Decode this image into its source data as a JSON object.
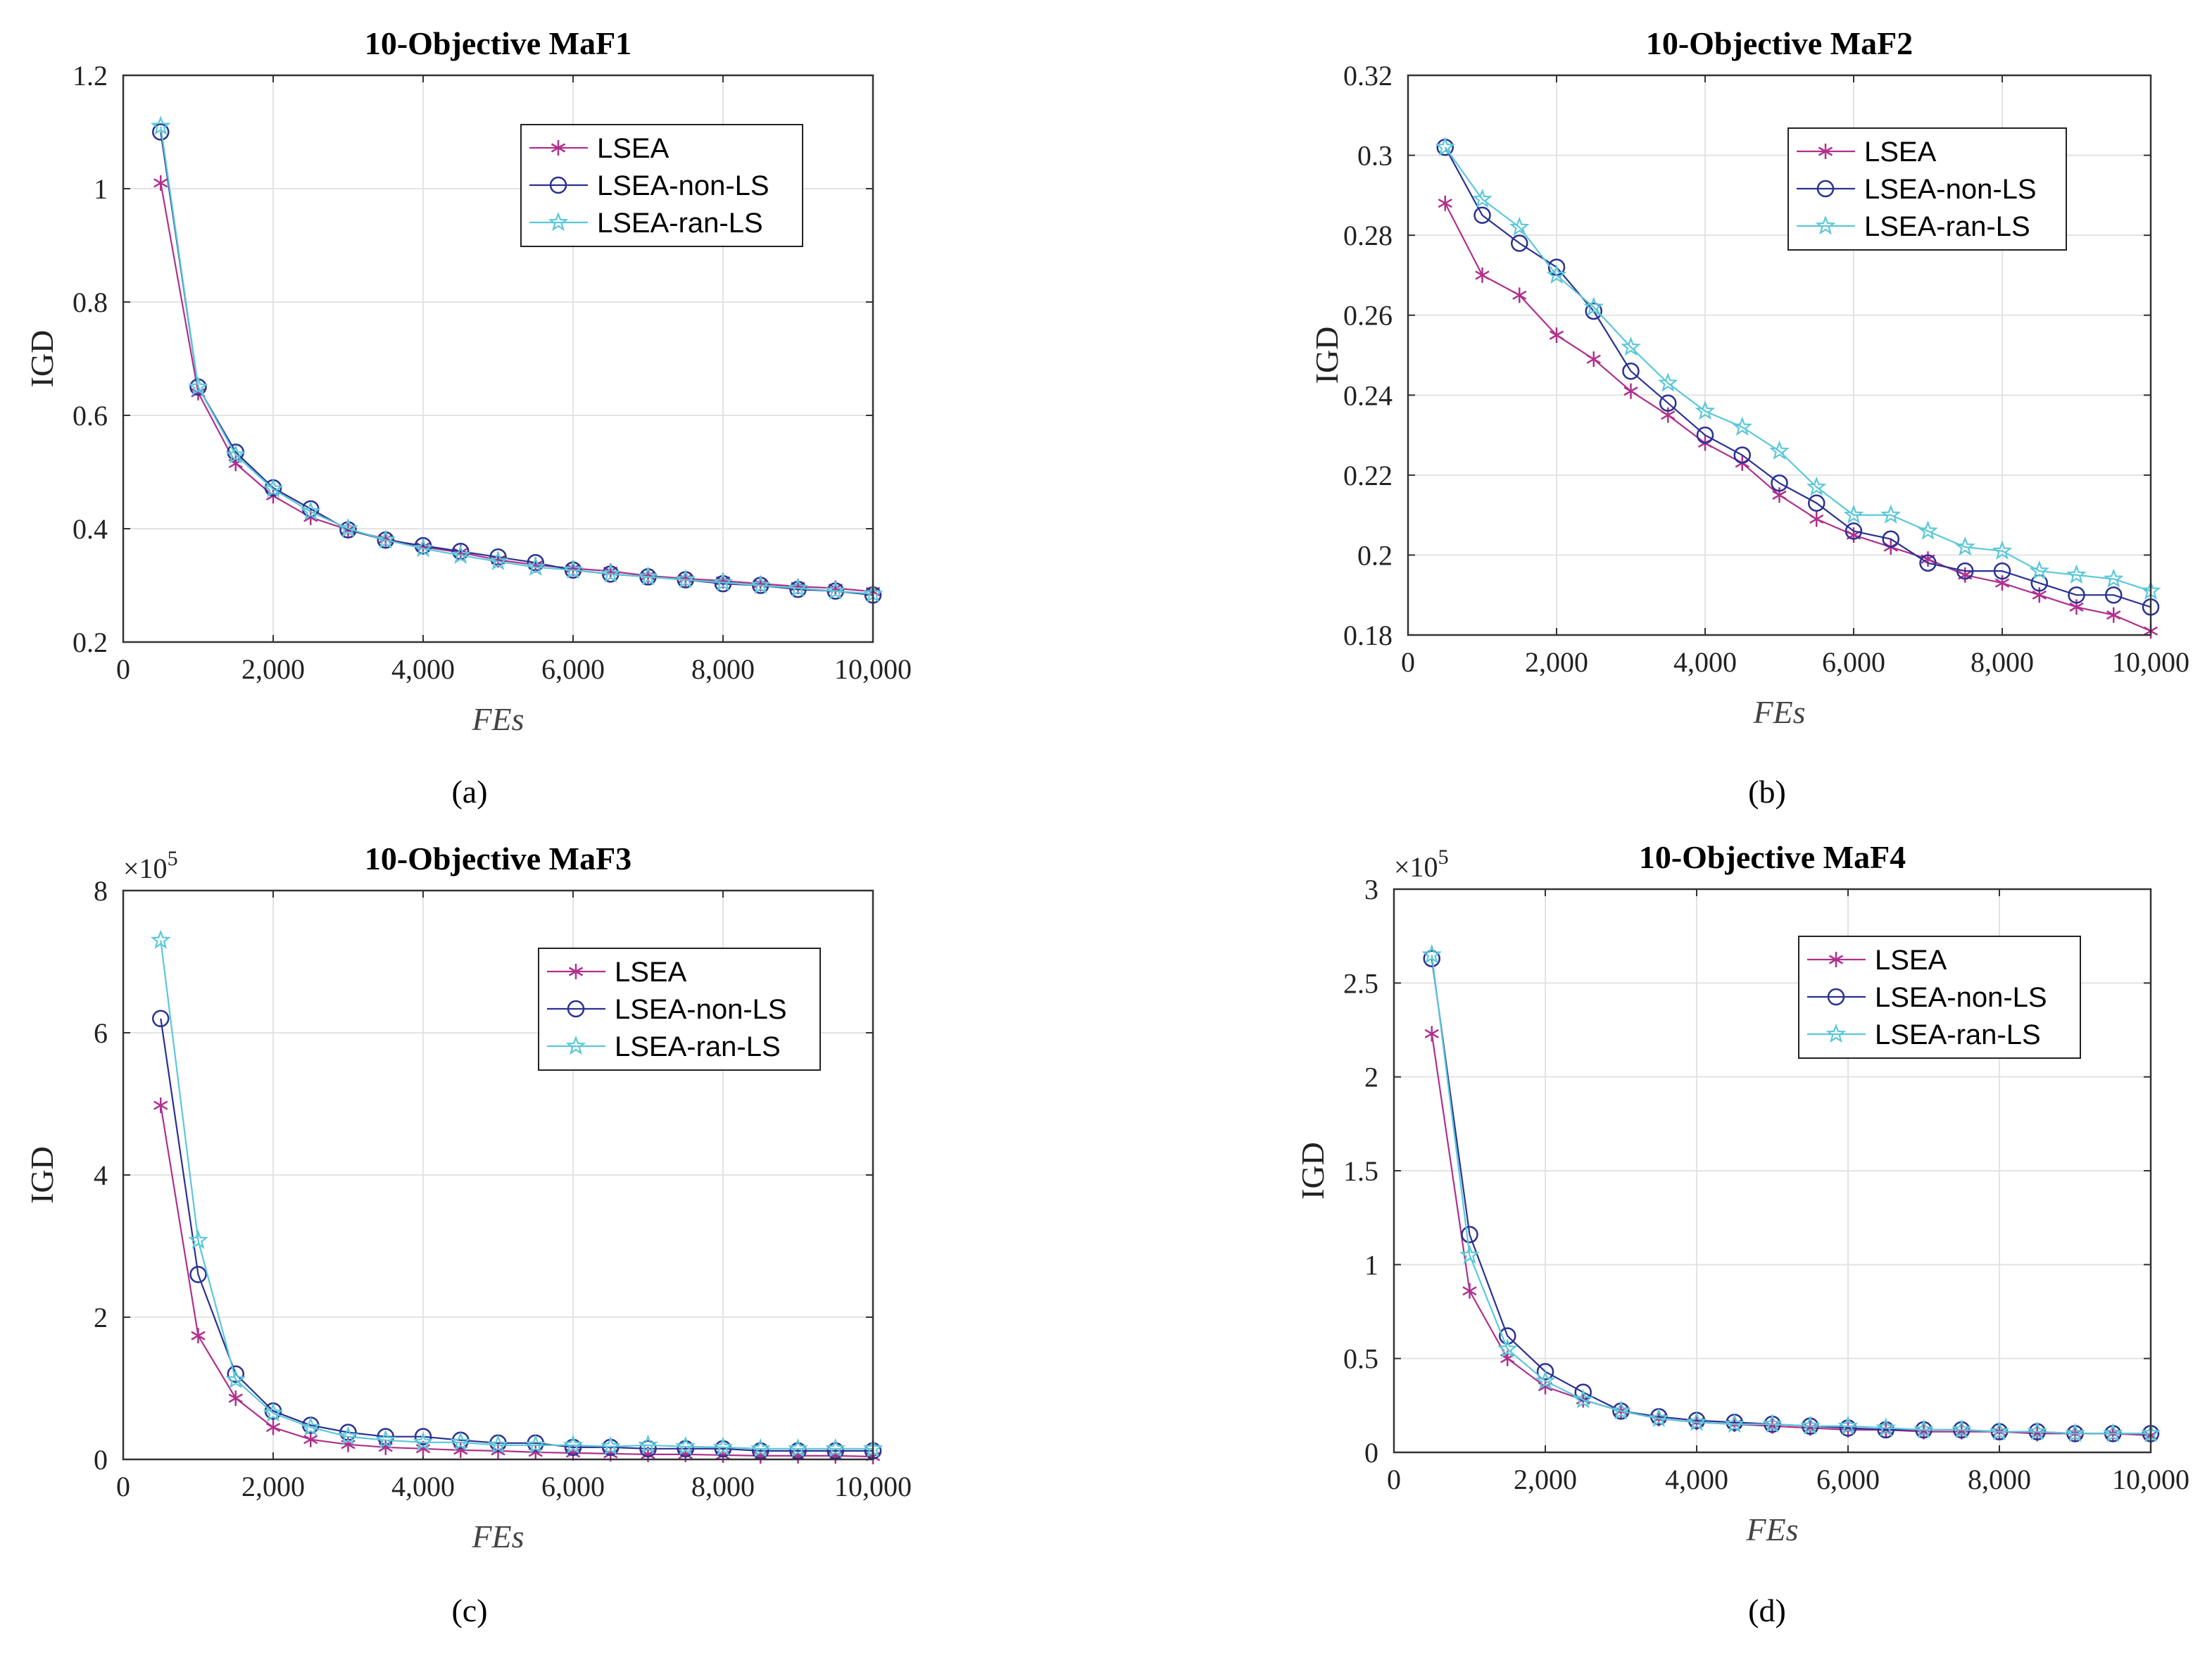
{
  "chart_data": [
    {
      "id": "a",
      "type": "line",
      "title": "10-Objective MaF1",
      "caption": "(a)",
      "xlabel": "FEs",
      "ylabel": "IGD",
      "xlim": [
        0,
        10000
      ],
      "ylim": [
        0.2,
        1.2
      ],
      "xticks": [
        0,
        2000,
        4000,
        6000,
        8000,
        10000
      ],
      "xtick_labels": [
        "0",
        "2,000",
        "4,000",
        "6,000",
        "8,000",
        "10,000"
      ],
      "yticks": [
        0.2,
        0.4,
        0.6,
        0.8,
        1,
        1.2
      ],
      "ytick_labels": [
        "0.2",
        "0.4",
        "0.6",
        "0.8",
        "1",
        "1.2"
      ],
      "exponent_label": "",
      "legend_position": "top-right",
      "x": [
        500,
        1000,
        1500,
        2000,
        2500,
        3000,
        3500,
        4000,
        4500,
        5000,
        5500,
        6000,
        6500,
        7000,
        7500,
        8000,
        8500,
        9000,
        9500,
        10000
      ],
      "series": [
        {
          "name": "LSEA",
          "color": "#b0308c",
          "marker": "asterisk",
          "values": [
            1.01,
            0.64,
            0.515,
            0.458,
            0.42,
            0.398,
            0.382,
            0.368,
            0.358,
            0.345,
            0.336,
            0.33,
            0.325,
            0.317,
            0.312,
            0.308,
            0.303,
            0.298,
            0.295,
            0.289
          ]
        },
        {
          "name": "LSEA-non-LS",
          "color": "#2a3192",
          "marker": "circle",
          "values": [
            1.1,
            0.65,
            0.535,
            0.472,
            0.435,
            0.398,
            0.38,
            0.37,
            0.36,
            0.35,
            0.34,
            0.327,
            0.32,
            0.315,
            0.31,
            0.303,
            0.3,
            0.293,
            0.29,
            0.283
          ]
        },
        {
          "name": "LSEA-ran-LS",
          "color": "#5bc8d8",
          "marker": "star",
          "values": [
            1.11,
            0.65,
            0.53,
            0.47,
            0.43,
            0.4,
            0.38,
            0.365,
            0.353,
            0.342,
            0.332,
            0.327,
            0.32,
            0.315,
            0.31,
            0.305,
            0.3,
            0.295,
            0.29,
            0.285
          ]
        }
      ]
    },
    {
      "id": "b",
      "type": "line",
      "title": "10-Objective MaF2",
      "caption": "(b)",
      "xlabel": "FEs",
      "ylabel": "IGD",
      "xlim": [
        0,
        10000
      ],
      "ylim": [
        0.18,
        0.32
      ],
      "xticks": [
        0,
        2000,
        4000,
        6000,
        8000,
        10000
      ],
      "xtick_labels": [
        "0",
        "2,000",
        "4,000",
        "6,000",
        "8,000",
        "10,000"
      ],
      "yticks": [
        0.18,
        0.2,
        0.22,
        0.24,
        0.26,
        0.28,
        0.3,
        0.32
      ],
      "ytick_labels": [
        "0.18",
        "0.2",
        "0.22",
        "0.24",
        "0.26",
        "0.28",
        "0.3",
        "0.32"
      ],
      "exponent_label": "",
      "legend_position": "top-right",
      "x": [
        500,
        1000,
        1500,
        2000,
        2500,
        3000,
        3500,
        4000,
        4500,
        5000,
        5500,
        6000,
        6500,
        7000,
        7500,
        8000,
        8500,
        9000,
        9500,
        10000
      ],
      "series": [
        {
          "name": "LSEA",
          "color": "#b0308c",
          "marker": "asterisk",
          "values": [
            0.288,
            0.27,
            0.265,
            0.255,
            0.249,
            0.241,
            0.235,
            0.228,
            0.223,
            0.215,
            0.209,
            0.205,
            0.202,
            0.199,
            0.195,
            0.193,
            0.19,
            0.187,
            0.185,
            0.181
          ]
        },
        {
          "name": "LSEA-non-LS",
          "color": "#2a3192",
          "marker": "circle",
          "values": [
            0.302,
            0.285,
            0.278,
            0.272,
            0.261,
            0.246,
            0.238,
            0.23,
            0.225,
            0.218,
            0.213,
            0.206,
            0.204,
            0.198,
            0.196,
            0.196,
            0.193,
            0.19,
            0.19,
            0.187
          ]
        },
        {
          "name": "LSEA-ran-LS",
          "color": "#5bc8d8",
          "marker": "star",
          "values": [
            0.302,
            0.289,
            0.282,
            0.27,
            0.262,
            0.252,
            0.243,
            0.236,
            0.232,
            0.226,
            0.217,
            0.21,
            0.21,
            0.206,
            0.202,
            0.201,
            0.196,
            0.195,
            0.194,
            0.191
          ]
        }
      ]
    },
    {
      "id": "c",
      "type": "line",
      "title": "10-Objective MaF3",
      "caption": "(c)",
      "xlabel": "FEs",
      "ylabel": "IGD",
      "xlim": [
        0,
        10000
      ],
      "ylim": [
        0,
        8
      ],
      "xticks": [
        0,
        2000,
        4000,
        6000,
        8000,
        10000
      ],
      "xtick_labels": [
        "0",
        "2,000",
        "4,000",
        "6,000",
        "8,000",
        "10,000"
      ],
      "yticks": [
        0,
        2,
        4,
        6,
        8
      ],
      "ytick_labels": [
        "0",
        "2",
        "4",
        "6",
        "8"
      ],
      "exponent_label": "×10",
      "exponent_power": "5",
      "legend_position": "top-right",
      "x": [
        500,
        1000,
        1500,
        2000,
        2500,
        3000,
        3500,
        4000,
        4500,
        5000,
        5500,
        6000,
        6500,
        7000,
        7500,
        8000,
        8500,
        9000,
        9500,
        10000
      ],
      "series": [
        {
          "name": "LSEA",
          "color": "#b0308c",
          "marker": "asterisk",
          "values": [
            4.98,
            1.74,
            0.86,
            0.45,
            0.28,
            0.21,
            0.17,
            0.15,
            0.13,
            0.12,
            0.1,
            0.09,
            0.08,
            0.07,
            0.07,
            0.06,
            0.05,
            0.05,
            0.05,
            0.04
          ]
        },
        {
          "name": "LSEA-non-LS",
          "color": "#2a3192",
          "marker": "circle",
          "values": [
            6.2,
            2.6,
            1.2,
            0.68,
            0.48,
            0.38,
            0.32,
            0.32,
            0.27,
            0.23,
            0.23,
            0.17,
            0.17,
            0.15,
            0.15,
            0.15,
            0.12,
            0.12,
            0.12,
            0.12
          ]
        },
        {
          "name": "LSEA-ran-LS",
          "color": "#5bc8d8",
          "marker": "star",
          "values": [
            7.3,
            3.08,
            1.12,
            0.65,
            0.45,
            0.32,
            0.27,
            0.24,
            0.24,
            0.2,
            0.2,
            0.2,
            0.18,
            0.2,
            0.18,
            0.17,
            0.15,
            0.15,
            0.15,
            0.15
          ]
        }
      ]
    },
    {
      "id": "d",
      "type": "line",
      "title": "10-Objective MaF4",
      "caption": "(d)",
      "xlabel": "FEs",
      "ylabel": "IGD",
      "xlim": [
        0,
        10000
      ],
      "ylim": [
        0,
        3
      ],
      "xticks": [
        0,
        2000,
        4000,
        6000,
        8000,
        10000
      ],
      "xtick_labels": [
        "0",
        "2,000",
        "4,000",
        "6,000",
        "8,000",
        "10,000"
      ],
      "yticks": [
        0,
        0.5,
        1,
        1.5,
        2,
        2.5,
        3
      ],
      "ytick_labels": [
        "0",
        "0.5",
        "1",
        "1.5",
        "2",
        "2.5",
        "3"
      ],
      "exponent_label": "×10",
      "exponent_power": "5",
      "legend_position": "top-right",
      "x": [
        500,
        1000,
        1500,
        2000,
        2500,
        3000,
        3500,
        4000,
        4500,
        5000,
        5500,
        6000,
        6500,
        7000,
        7500,
        8000,
        8500,
        9000,
        9500,
        10000
      ],
      "series": [
        {
          "name": "LSEA",
          "color": "#b0308c",
          "marker": "asterisk",
          "values": [
            2.23,
            0.86,
            0.5,
            0.35,
            0.28,
            0.22,
            0.18,
            0.16,
            0.15,
            0.14,
            0.13,
            0.12,
            0.12,
            0.11,
            0.11,
            0.11,
            0.1,
            0.1,
            0.1,
            0.09
          ]
        },
        {
          "name": "LSEA-non-LS",
          "color": "#2a3192",
          "marker": "circle",
          "values": [
            2.63,
            1.16,
            0.62,
            0.43,
            0.32,
            0.22,
            0.19,
            0.17,
            0.16,
            0.15,
            0.14,
            0.13,
            0.12,
            0.12,
            0.12,
            0.11,
            0.11,
            0.1,
            0.1,
            0.1
          ]
        },
        {
          "name": "LSEA-ran-LS",
          "color": "#5bc8d8",
          "marker": "star",
          "values": [
            2.65,
            1.05,
            0.55,
            0.38,
            0.28,
            0.22,
            0.18,
            0.16,
            0.15,
            0.15,
            0.14,
            0.14,
            0.13,
            0.12,
            0.12,
            0.11,
            0.11,
            0.1,
            0.1,
            0.1
          ]
        }
      ]
    }
  ]
}
